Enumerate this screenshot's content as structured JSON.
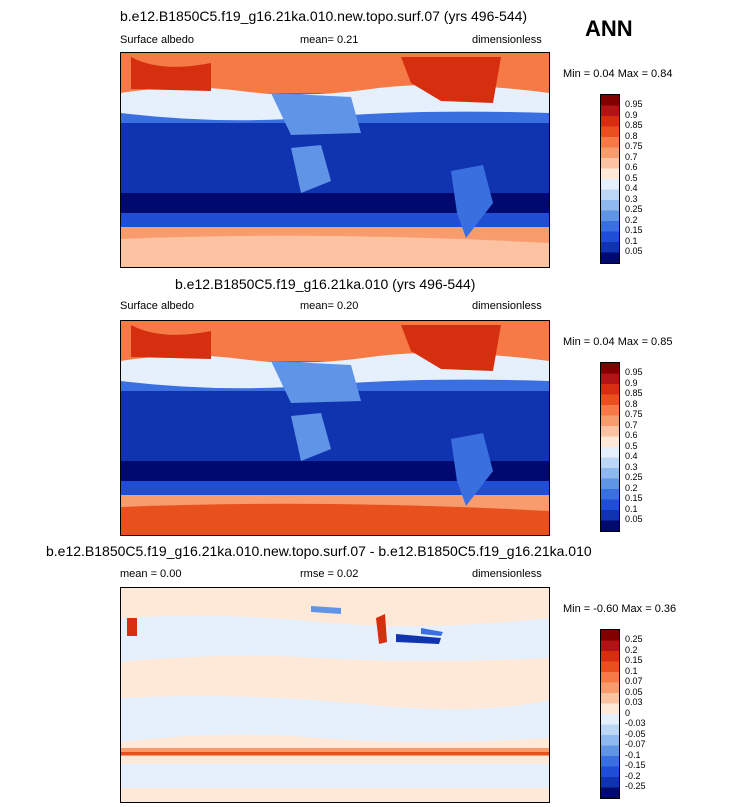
{
  "header": {
    "season": "ANN"
  },
  "panels": [
    {
      "title": "b.e12.B1850C5.f19_g16.21ka.010.new.topo.surf.07 (yrs 496-544)",
      "left_label": "Surface albedo",
      "center_label": "mean=   0.21",
      "right_label": "dimensionless",
      "minmax_label": "Min =   0.04 Max =   0.84",
      "min": 0.04,
      "max": 0.84,
      "mean": 0.21,
      "colorbar": {
        "labels": [
          "0.95",
          "0.9",
          "0.85",
          "0.8",
          "0.75",
          "0.7",
          "0.6",
          "0.5",
          "0.4",
          "0.3",
          "0.25",
          "0.2",
          "0.15",
          "0.1",
          "0.05"
        ],
        "colors": [
          "#800000",
          "#b01414",
          "#d62f0f",
          "#e8501e",
          "#f57a46",
          "#f99c6d",
          "#fcc3a2",
          "#fee8d8",
          "#e6f0fc",
          "#bcd6f5",
          "#8fb9ee",
          "#5f94e6",
          "#3a6fe0",
          "#1f4ed4",
          "#1033b0",
          "#000a6e"
        ]
      }
    },
    {
      "title": "b.e12.B1850C5.f19_g16.21ka.010 (yrs 496-544)",
      "left_label": "Surface albedo",
      "center_label": "mean=   0.20",
      "right_label": "dimensionless",
      "minmax_label": "Min =   0.04 Max =   0.85",
      "min": 0.04,
      "max": 0.85,
      "mean": 0.2,
      "colorbar": {
        "labels": [
          "0.95",
          "0.9",
          "0.85",
          "0.8",
          "0.75",
          "0.7",
          "0.6",
          "0.5",
          "0.4",
          "0.3",
          "0.25",
          "0.2",
          "0.15",
          "0.1",
          "0.05"
        ],
        "colors": [
          "#800000",
          "#b01414",
          "#d62f0f",
          "#e8501e",
          "#f57a46",
          "#f99c6d",
          "#fcc3a2",
          "#fee8d8",
          "#e6f0fc",
          "#bcd6f5",
          "#8fb9ee",
          "#5f94e6",
          "#3a6fe0",
          "#1f4ed4",
          "#1033b0",
          "#000a6e"
        ]
      }
    },
    {
      "title": "b.e12.B1850C5.f19_g16.21ka.010.new.topo.surf.07 - b.e12.B1850C5.f19_g16.21ka.010",
      "left_label": "mean =   0.00",
      "center_label": "rmse =   0.02",
      "right_label": "dimensionless",
      "minmax_label": "Min =  -0.60 Max =   0.36",
      "min": -0.6,
      "max": 0.36,
      "mean": 0.0,
      "rmse": 0.02,
      "colorbar": {
        "labels": [
          "0.25",
          "0.2",
          "0.15",
          "0.1",
          "0.07",
          "0.05",
          "0.03",
          "0",
          "-0.03",
          "-0.05",
          "-0.07",
          "-0.1",
          "-0.15",
          "-0.2",
          "-0.25"
        ],
        "colors": [
          "#800000",
          "#b01414",
          "#d62f0f",
          "#e8501e",
          "#f57a46",
          "#f99c6d",
          "#fcc3a2",
          "#fee8d8",
          "#e6f0fc",
          "#bcd6f5",
          "#8fb9ee",
          "#5f94e6",
          "#3a6fe0",
          "#1f4ed4",
          "#1033b0",
          "#000a6e"
        ]
      }
    }
  ],
  "chart_data": [
    {
      "type": "heatmap",
      "title": "b.e12.B1850C5.f19_g16.21ka.010.new.topo.surf.07 (yrs 496-544)",
      "variable": "Surface albedo",
      "units": "dimensionless",
      "mean": 0.21,
      "min": 0.04,
      "max": 0.84
    },
    {
      "type": "heatmap",
      "title": "b.e12.B1850C5.f19_g16.21ka.010 (yrs 496-544)",
      "variable": "Surface albedo",
      "units": "dimensionless",
      "mean": 0.2,
      "min": 0.04,
      "max": 0.85
    },
    {
      "type": "heatmap",
      "title": "b.e12.B1850C5.f19_g16.21ka.010.new.topo.surf.07 - b.e12.B1850C5.f19_g16.21ka.010",
      "units": "dimensionless",
      "mean": 0.0,
      "rmse": 0.02,
      "min": -0.6,
      "max": 0.36
    }
  ]
}
